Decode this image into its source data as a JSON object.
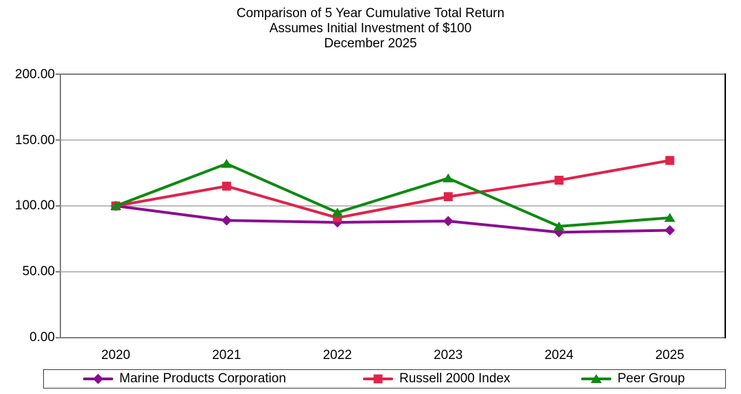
{
  "chart_data": {
    "type": "line",
    "title": "Comparison of 5 Year Cumulative Total Return",
    "subtitle": "Assumes Initial Investment of $100",
    "date_label": "December 2025",
    "categories": [
      "2020",
      "2021",
      "2022",
      "2023",
      "2024",
      "2025"
    ],
    "series": [
      {
        "name": "Marine Products Corporation",
        "marker": "diamond",
        "color": "#8A0D8F",
        "values": [
          100.0,
          89.0,
          87.5,
          88.5,
          80.0,
          81.5
        ]
      },
      {
        "name": "Russell 2000 Index",
        "marker": "square",
        "color": "#E0234A",
        "values": [
          100.0,
          115.0,
          91.0,
          107.0,
          119.5,
          134.5
        ]
      },
      {
        "name": "Peer Group",
        "marker": "triangle",
        "color": "#0E8A10",
        "values": [
          100.0,
          132.0,
          95.0,
          121.0,
          84.5,
          91.0
        ]
      }
    ],
    "xlabel": "",
    "ylabel": "",
    "ylim": [
      0,
      200
    ],
    "yticks": [
      0,
      50,
      100,
      150,
      200
    ],
    "ytick_labels": [
      "0.00",
      "50.00",
      "100.00",
      "150.00",
      "200.00"
    ],
    "grid": "horizontal",
    "legend_position": "bottom"
  },
  "colors": {
    "background": "#FFFFFF",
    "text": "#000000",
    "gridline": "#A6A6A6",
    "frame": "#808080",
    "frame_right": "#000000",
    "legend_border": "#3A3A3A"
  }
}
